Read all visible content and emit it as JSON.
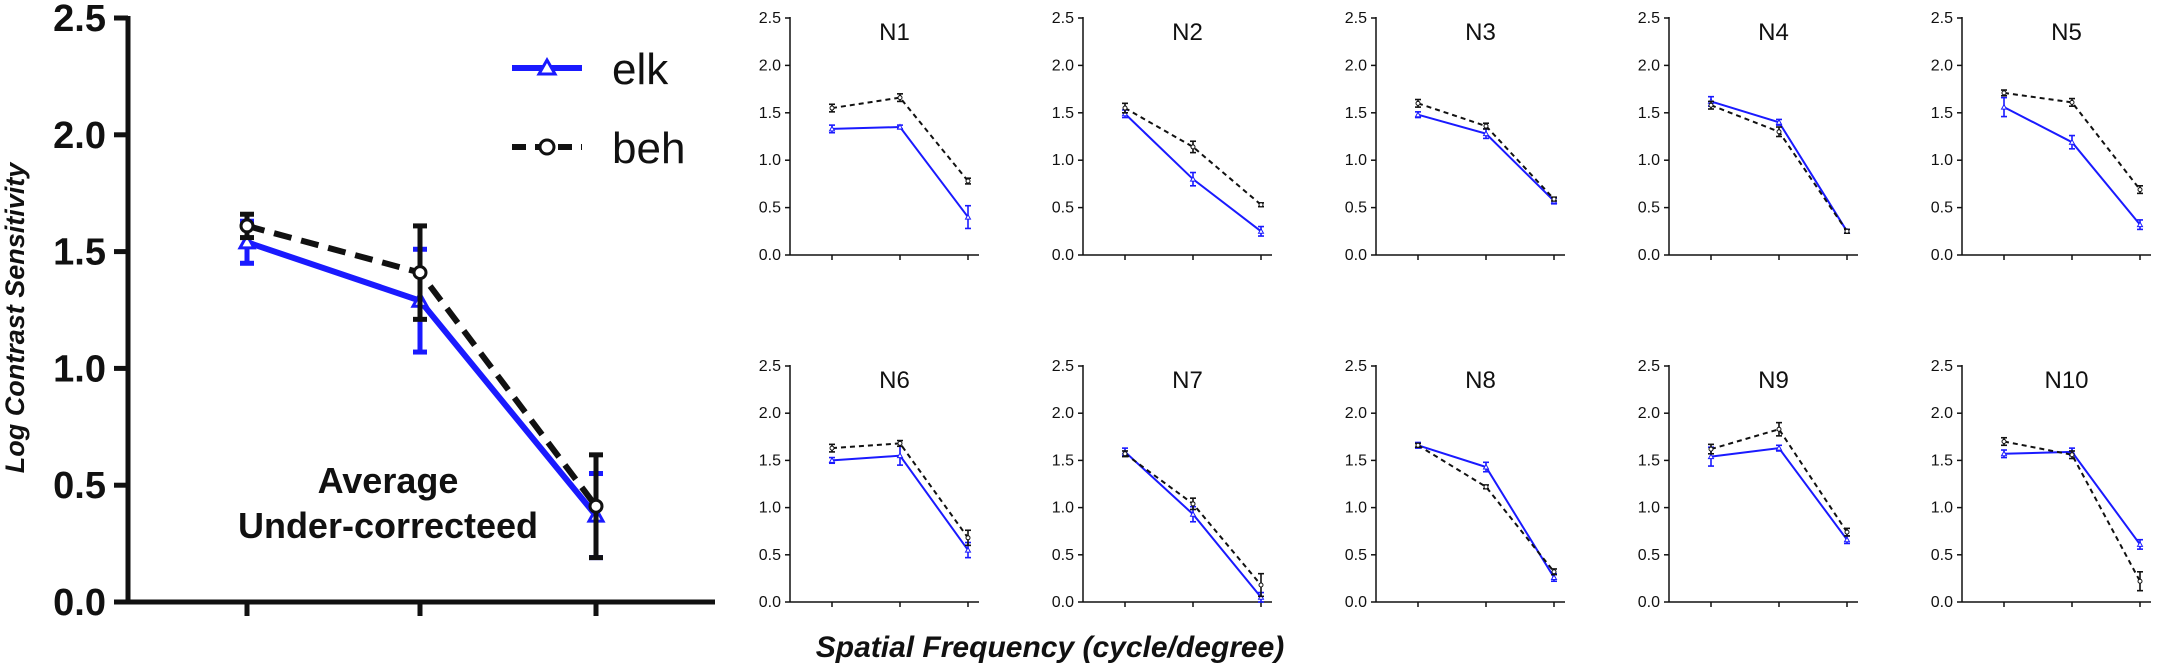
{
  "colors": {
    "elk": "#1a1aff",
    "beh": "#111111",
    "axis": "#111111"
  },
  "legend": {
    "elk": "elk",
    "beh": "beh"
  },
  "y_axis_label": "Log Contrast Sensitivity",
  "x_axis_label": "Spatial Frequency (cycle/degree)",
  "chart_data": [
    {
      "id": "average",
      "type": "line",
      "title": "",
      "annotation": [
        "Average",
        "Under-correcteed"
      ],
      "ylim": [
        0,
        2.5
      ],
      "yticks": [
        "0.0",
        "0.5",
        "1.0",
        "1.5",
        "2.0",
        "2.5"
      ],
      "x": [
        1,
        2,
        3
      ],
      "series": [
        {
          "name": "elk",
          "values": [
            1.54,
            1.29,
            0.37
          ],
          "errors": [
            0.09,
            0.22,
            0.18
          ]
        },
        {
          "name": "beh",
          "values": [
            1.61,
            1.41,
            0.41
          ],
          "errors": [
            0.05,
            0.2,
            0.22
          ]
        }
      ]
    },
    {
      "id": "N1",
      "type": "line",
      "title": "N1",
      "ylim": [
        0,
        2.5
      ],
      "yticks": [
        "0.0",
        "0.5",
        "1.0",
        "1.5",
        "2.0",
        "2.5"
      ],
      "x": [
        1,
        2,
        3
      ],
      "series": [
        {
          "name": "elk",
          "values": [
            1.33,
            1.35,
            0.4
          ],
          "errors": [
            0.04,
            0.02,
            0.12
          ]
        },
        {
          "name": "beh",
          "values": [
            1.55,
            1.66,
            0.78
          ],
          "errors": [
            0.04,
            0.04,
            0.03
          ]
        }
      ]
    },
    {
      "id": "N2",
      "type": "line",
      "title": "N2",
      "ylim": [
        0,
        2.5
      ],
      "yticks": [
        "0.0",
        "0.5",
        "1.0",
        "1.5",
        "2.0",
        "2.5"
      ],
      "x": [
        1,
        2,
        3
      ],
      "series": [
        {
          "name": "elk",
          "values": [
            1.49,
            0.8,
            0.25
          ],
          "errors": [
            0.04,
            0.07,
            0.05
          ]
        },
        {
          "name": "beh",
          "values": [
            1.55,
            1.14,
            0.53
          ],
          "errors": [
            0.05,
            0.06,
            0.02
          ]
        }
      ]
    },
    {
      "id": "N3",
      "type": "line",
      "title": "N3",
      "ylim": [
        0,
        2.5
      ],
      "yticks": [
        "0.0",
        "0.5",
        "1.0",
        "1.5",
        "2.0",
        "2.5"
      ],
      "x": [
        1,
        2,
        3
      ],
      "series": [
        {
          "name": "elk",
          "values": [
            1.48,
            1.28,
            0.57
          ],
          "errors": [
            0.03,
            0.05,
            0.03
          ]
        },
        {
          "name": "beh",
          "values": [
            1.6,
            1.36,
            0.59
          ],
          "errors": [
            0.04,
            0.03,
            0.02
          ]
        }
      ]
    },
    {
      "id": "N4",
      "type": "line",
      "title": "N4",
      "ylim": [
        0,
        2.5
      ],
      "yticks": [
        "0.0",
        "0.5",
        "1.0",
        "1.5",
        "2.0",
        "2.5"
      ],
      "x": [
        1,
        2,
        3
      ],
      "series": [
        {
          "name": "elk",
          "values": [
            1.62,
            1.4,
            0.25
          ],
          "errors": [
            0.05,
            0.03,
            0.02
          ]
        },
        {
          "name": "beh",
          "values": [
            1.58,
            1.3,
            0.25
          ],
          "errors": [
            0.04,
            0.05,
            0.02
          ]
        }
      ]
    },
    {
      "id": "N5",
      "type": "line",
      "title": "N5",
      "ylim": [
        0,
        2.5
      ],
      "yticks": [
        "0.0",
        "0.5",
        "1.0",
        "1.5",
        "2.0",
        "2.5"
      ],
      "x": [
        1,
        2,
        3
      ],
      "series": [
        {
          "name": "elk",
          "values": [
            1.56,
            1.19,
            0.32
          ],
          "errors": [
            0.1,
            0.07,
            0.05
          ]
        },
        {
          "name": "beh",
          "values": [
            1.71,
            1.61,
            0.69
          ],
          "errors": [
            0.03,
            0.04,
            0.04
          ]
        }
      ]
    },
    {
      "id": "N6",
      "type": "line",
      "title": "N6",
      "ylim": [
        0,
        2.5
      ],
      "yticks": [
        "0.0",
        "0.5",
        "1.0",
        "1.5",
        "2.0",
        "2.5"
      ],
      "x": [
        1,
        2,
        3
      ],
      "series": [
        {
          "name": "elk",
          "values": [
            1.5,
            1.55,
            0.55
          ],
          "errors": [
            0.03,
            0.1,
            0.08
          ]
        },
        {
          "name": "beh",
          "values": [
            1.63,
            1.68,
            0.68
          ],
          "errors": [
            0.04,
            0.03,
            0.08
          ]
        }
      ]
    },
    {
      "id": "N7",
      "type": "line",
      "title": "N7",
      "ylim": [
        0,
        2.5
      ],
      "yticks": [
        "0.0",
        "0.5",
        "1.0",
        "1.5",
        "2.0",
        "2.5"
      ],
      "x": [
        1,
        2,
        3
      ],
      "series": [
        {
          "name": "elk",
          "values": [
            1.59,
            0.93,
            0.05
          ],
          "errors": [
            0.04,
            0.08,
            0.05
          ]
        },
        {
          "name": "beh",
          "values": [
            1.57,
            1.04,
            0.18
          ],
          "errors": [
            0.03,
            0.06,
            0.12
          ]
        }
      ]
    },
    {
      "id": "N8",
      "type": "line",
      "title": "N8",
      "ylim": [
        0,
        2.5
      ],
      "yticks": [
        "0.0",
        "0.5",
        "1.0",
        "1.5",
        "2.0",
        "2.5"
      ],
      "x": [
        1,
        2,
        3
      ],
      "series": [
        {
          "name": "elk",
          "values": [
            1.66,
            1.43,
            0.26
          ],
          "errors": [
            0.03,
            0.05,
            0.04
          ]
        },
        {
          "name": "beh",
          "values": [
            1.66,
            1.22,
            0.32
          ],
          "errors": [
            0.02,
            0.02,
            0.03
          ]
        }
      ]
    },
    {
      "id": "N9",
      "type": "line",
      "title": "N9",
      "ylim": [
        0,
        2.5
      ],
      "yticks": [
        "0.0",
        "0.5",
        "1.0",
        "1.5",
        "2.0",
        "2.5"
      ],
      "x": [
        1,
        2,
        3
      ],
      "series": [
        {
          "name": "elk",
          "values": [
            1.54,
            1.63,
            0.66
          ],
          "errors": [
            0.1,
            0.03,
            0.04
          ]
        },
        {
          "name": "beh",
          "values": [
            1.62,
            1.83,
            0.74
          ],
          "errors": [
            0.05,
            0.07,
            0.04
          ]
        }
      ]
    },
    {
      "id": "N10",
      "type": "line",
      "title": "N10",
      "ylim": [
        0,
        2.5
      ],
      "yticks": [
        "0.0",
        "0.5",
        "1.0",
        "1.5",
        "2.0",
        "2.5"
      ],
      "x": [
        1,
        2,
        3
      ],
      "series": [
        {
          "name": "elk",
          "values": [
            1.57,
            1.59,
            0.61
          ],
          "errors": [
            0.04,
            0.04,
            0.05
          ]
        },
        {
          "name": "beh",
          "values": [
            1.7,
            1.56,
            0.22
          ],
          "errors": [
            0.04,
            0.04,
            0.1
          ]
        }
      ]
    }
  ]
}
